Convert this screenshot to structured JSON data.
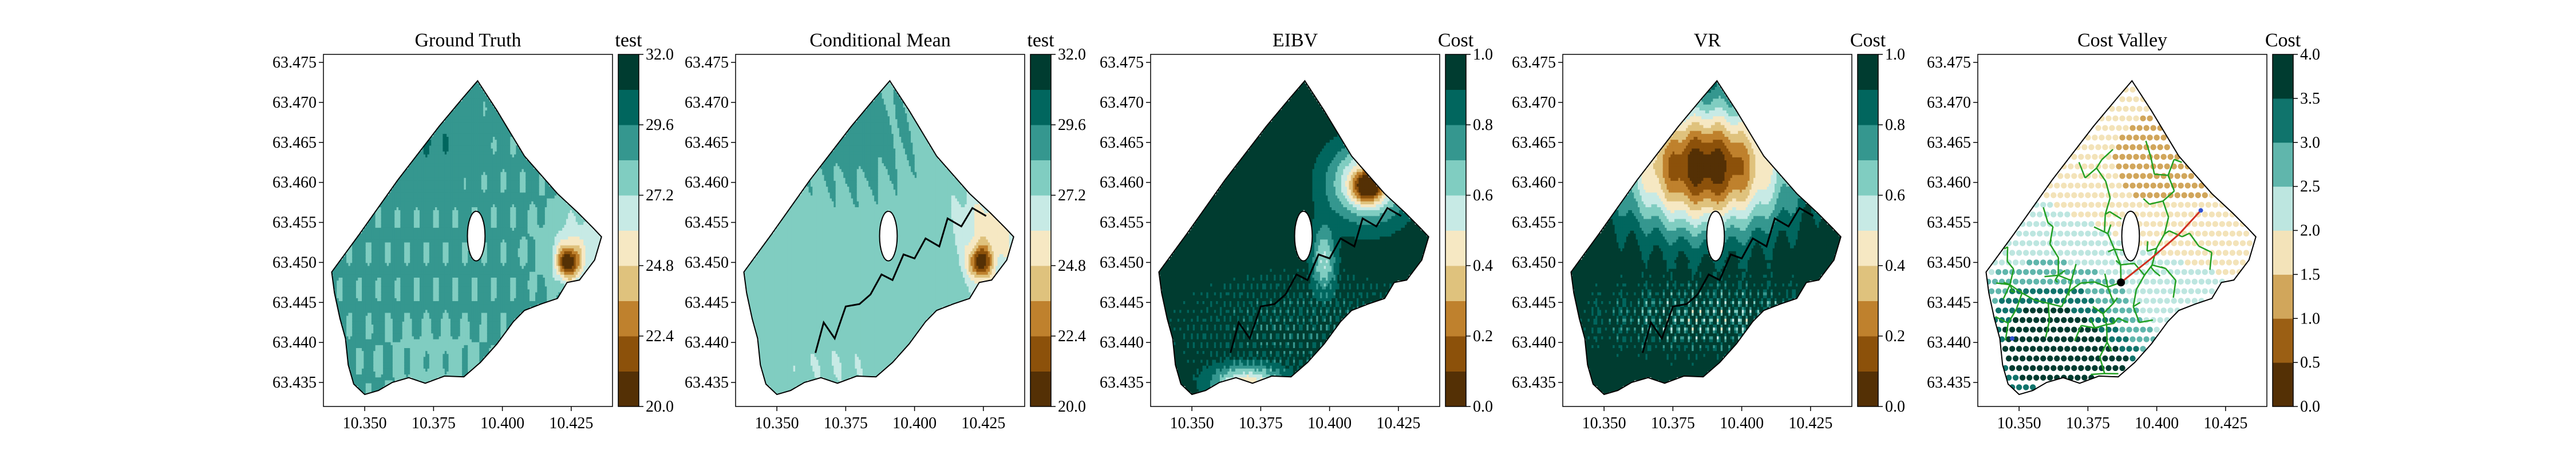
{
  "chart_data": [
    {
      "type": "contour",
      "title": "Ground Truth",
      "colorbar": {
        "label": "test",
        "ticks": [
          "20.0",
          "22.4",
          "24.8",
          "27.2",
          "29.6",
          "32.0"
        ],
        "range": [
          20.0,
          32.0
        ],
        "levels": 10,
        "colormap": "BrBG"
      },
      "x_ticks": [
        "10.350",
        "10.375",
        "10.400",
        "10.425"
      ],
      "y_ticks": [
        "63.435",
        "63.440",
        "63.445",
        "63.450",
        "63.455",
        "63.460",
        "63.465",
        "63.470",
        "63.475"
      ],
      "xlim": [
        10.335,
        10.44
      ],
      "ylim": [
        63.432,
        63.476
      ],
      "overlay": "none"
    },
    {
      "type": "contour",
      "title": "Conditional Mean",
      "colorbar": {
        "label": "test",
        "ticks": [
          "20.0",
          "22.4",
          "24.8",
          "27.2",
          "29.6",
          "32.0"
        ],
        "range": [
          20.0,
          32.0
        ],
        "levels": 10,
        "colormap": "BrBG"
      },
      "x_ticks": [
        "10.350",
        "10.375",
        "10.400",
        "10.425"
      ],
      "y_ticks": [
        "63.435",
        "63.440",
        "63.445",
        "63.450",
        "63.455",
        "63.460",
        "63.465",
        "63.470",
        "63.475"
      ],
      "xlim": [
        10.335,
        10.44
      ],
      "ylim": [
        63.432,
        63.476
      ],
      "overlay": "trajectory"
    },
    {
      "type": "contour",
      "title": "EIBV",
      "colorbar": {
        "label": "Cost",
        "ticks": [
          "0.0",
          "0.2",
          "0.4",
          "0.6",
          "0.8",
          "1.0"
        ],
        "range": [
          0.0,
          1.0
        ],
        "levels": 10,
        "colormap": "BrBG"
      },
      "x_ticks": [
        "10.350",
        "10.375",
        "10.400",
        "10.425"
      ],
      "y_ticks": [
        "63.435",
        "63.440",
        "63.445",
        "63.450",
        "63.455",
        "63.460",
        "63.465",
        "63.470",
        "63.475"
      ],
      "xlim": [
        10.335,
        10.44
      ],
      "ylim": [
        63.432,
        63.476
      ],
      "overlay": "trajectory"
    },
    {
      "type": "contour",
      "title": "VR",
      "colorbar": {
        "label": "Cost",
        "ticks": [
          "0.0",
          "0.2",
          "0.4",
          "0.6",
          "0.8",
          "1.0"
        ],
        "range": [
          0.0,
          1.0
        ],
        "levels": 10,
        "colormap": "BrBG"
      },
      "x_ticks": [
        "10.350",
        "10.375",
        "10.400",
        "10.425"
      ],
      "y_ticks": [
        "63.435",
        "63.440",
        "63.445",
        "63.450",
        "63.455",
        "63.460",
        "63.465",
        "63.470",
        "63.475"
      ],
      "xlim": [
        10.335,
        10.44
      ],
      "ylim": [
        63.432,
        63.476
      ],
      "overlay": "trajectory"
    },
    {
      "type": "scatter",
      "title": "Cost Valley",
      "colorbar": {
        "label": "Cost",
        "ticks": [
          "0.0",
          "0.5",
          "1.0",
          "1.5",
          "2.0",
          "2.5",
          "3.0",
          "3.5",
          "4.0"
        ],
        "range": [
          0.0,
          4.0
        ],
        "levels": 8,
        "colormap": "BrBG"
      },
      "x_ticks": [
        "10.350",
        "10.375",
        "10.400",
        "10.425"
      ],
      "y_ticks": [
        "63.435",
        "63.440",
        "63.445",
        "63.450",
        "63.455",
        "63.460",
        "63.465",
        "63.470",
        "63.475"
      ],
      "xlim": [
        10.335,
        10.44
      ],
      "ylim": [
        63.432,
        63.476
      ],
      "overlay": "rrt-tree"
    }
  ]
}
